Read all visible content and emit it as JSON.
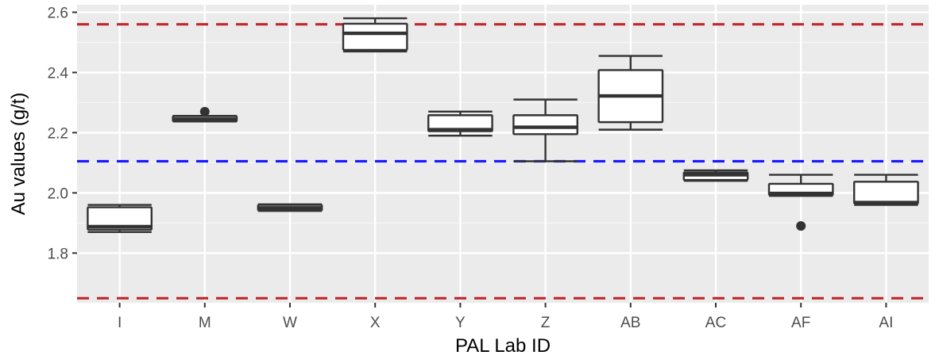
{
  "chart_data": {
    "type": "box",
    "xlabel": "PAL Lab ID",
    "ylabel": "Au values (g/t)",
    "ylim": [
      1.635,
      2.625
    ],
    "yticks": [
      1.8,
      2.0,
      2.2,
      2.4,
      2.6
    ],
    "ytick_labels": [
      "1.8",
      "2.0",
      "2.2",
      "2.4",
      "2.6"
    ],
    "grid": true,
    "categories": [
      "I",
      "M",
      "W",
      "X",
      "Y",
      "Z",
      "AB",
      "AC",
      "AF",
      "AI"
    ],
    "boxes": [
      {
        "label": "I",
        "whisker_low": 1.87,
        "q1": 1.878,
        "median": 1.888,
        "q3": 1.952,
        "whisker_high": 1.96,
        "outliers": []
      },
      {
        "label": "M",
        "whisker_low": 2.237,
        "q1": 2.238,
        "median": 2.245,
        "q3": 2.255,
        "whisker_high": 2.256,
        "outliers": [
          2.27
        ]
      },
      {
        "label": "W",
        "whisker_low": 1.94,
        "q1": 1.942,
        "median": 1.95,
        "q3": 1.96,
        "whisker_high": 1.962,
        "outliers": []
      },
      {
        "label": "X",
        "whisker_low": 2.47,
        "q1": 2.475,
        "median": 2.53,
        "q3": 2.562,
        "whisker_high": 2.58,
        "outliers": []
      },
      {
        "label": "Y",
        "whisker_low": 2.19,
        "q1": 2.205,
        "median": 2.21,
        "q3": 2.258,
        "whisker_high": 2.27,
        "outliers": []
      },
      {
        "label": "Z",
        "whisker_low": 2.105,
        "q1": 2.195,
        "median": 2.218,
        "q3": 2.258,
        "whisker_high": 2.31,
        "outliers": []
      },
      {
        "label": "AB",
        "whisker_low": 2.21,
        "q1": 2.235,
        "median": 2.322,
        "q3": 2.408,
        "whisker_high": 2.455,
        "outliers": []
      },
      {
        "label": "AC",
        "whisker_low": 2.04,
        "q1": 2.043,
        "median": 2.06,
        "q3": 2.068,
        "whisker_high": 2.075,
        "outliers": []
      },
      {
        "label": "AF",
        "whisker_low": 1.99,
        "q1": 1.993,
        "median": 1.998,
        "q3": 2.03,
        "whisker_high": 2.06,
        "outliers": [
          1.89
        ]
      },
      {
        "label": "AI",
        "whisker_low": 1.96,
        "q1": 1.965,
        "median": 1.968,
        "q3": 2.037,
        "whisker_high": 2.06,
        "outliers": []
      }
    ],
    "reference_lines": [
      {
        "y": 2.56,
        "color": "#c0282c",
        "style": "dashed"
      },
      {
        "y": 2.105,
        "color": "#1a1aff",
        "style": "dashed"
      },
      {
        "y": 1.65,
        "color": "#c0282c",
        "style": "dashed"
      }
    ],
    "colors": {
      "panel_background": "#ebebeb",
      "grid_major": "#ffffff",
      "grid_minor": "#f7f7f7",
      "box_fill": "#ffffff",
      "box_stroke": "#333333",
      "outlier": "#333333"
    }
  }
}
